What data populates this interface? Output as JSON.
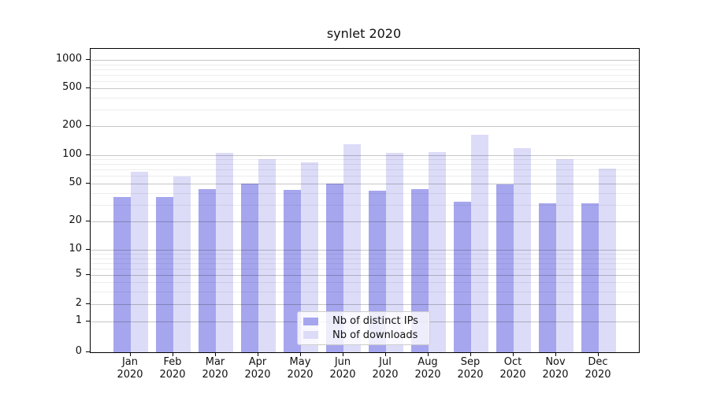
{
  "title": "synlet 2020",
  "chart_data": {
    "type": "bar",
    "title": "synlet 2020",
    "categories": [
      "Jan 2020",
      "Feb 2020",
      "Mar 2020",
      "Apr 2020",
      "May 2020",
      "Jun 2020",
      "Jul 2020",
      "Aug 2020",
      "Sep 2020",
      "Oct 2020",
      "Nov 2020",
      "Dec 2020"
    ],
    "series": [
      {
        "name": "Nb of distinct IPs",
        "color": "#a6a6ee",
        "values": [
          36,
          36,
          44,
          50,
          43,
          50,
          42,
          44,
          32,
          49,
          31,
          31
        ]
      },
      {
        "name": "Nb of downloads",
        "color": "#dcdcf8",
        "values": [
          66,
          59,
          106,
          91,
          83,
          131,
          105,
          107,
          163,
          117,
          90,
          72
        ]
      }
    ],
    "yscale": "symlog",
    "yticks": [
      0,
      1,
      2,
      5,
      10,
      20,
      50,
      100,
      200,
      500,
      1000
    ],
    "minor_yticks": [
      3,
      4,
      6,
      7,
      8,
      9,
      30,
      40,
      60,
      70,
      80,
      90,
      300,
      400,
      600,
      700,
      800,
      900
    ],
    "ylim": [
      0,
      1300
    ],
    "xlabel": "",
    "ylabel": "",
    "grid": "on",
    "legend_position": "lower center"
  },
  "legend": {
    "items": [
      {
        "label": "Nb of distinct IPs",
        "color": "#a6a6ee"
      },
      {
        "label": "Nb of downloads",
        "color": "#dcdcf8"
      }
    ]
  }
}
